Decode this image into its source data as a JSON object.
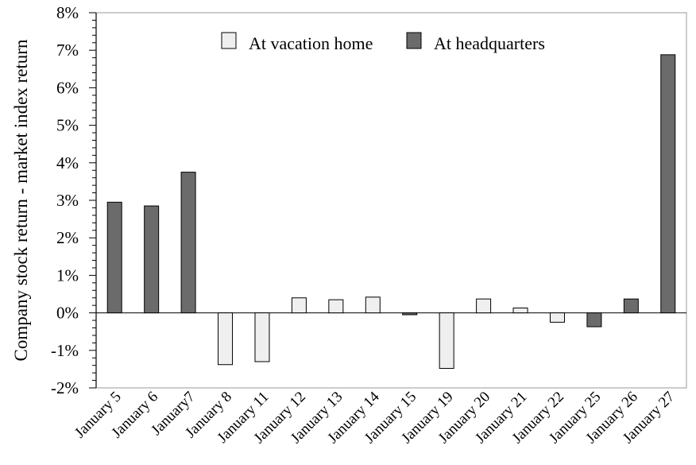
{
  "chart_data": {
    "type": "bar",
    "title": "",
    "xlabel": "",
    "ylabel": "Company stock return - market index return",
    "ylim": [
      -2,
      8
    ],
    "yticks": [
      "8%",
      "7%",
      "6%",
      "5%",
      "4%",
      "3%",
      "2%",
      "1%",
      "0%",
      "-1%",
      "-2%"
    ],
    "ytick_values": [
      8,
      7,
      6,
      5,
      4,
      3,
      2,
      1,
      0,
      -1,
      -2
    ],
    "grid": false,
    "legend_position": "top-center",
    "categories": [
      "January 5",
      "January 6",
      "January7",
      "January 8",
      "January 11",
      "January 12",
      "January 13",
      "January 14",
      "January 15",
      "January 19",
      "January 20",
      "January 21",
      "January 22",
      "January 25",
      "January 26",
      "January 27"
    ],
    "values": [
      2.95,
      2.85,
      3.75,
      -1.38,
      -1.3,
      0.4,
      0.35,
      0.42,
      -0.05,
      -1.48,
      0.37,
      0.13,
      -0.25,
      -0.37,
      0.37,
      6.88
    ],
    "location": [
      "hq",
      "hq",
      "hq",
      "vac",
      "vac",
      "vac",
      "vac",
      "vac",
      "hq",
      "vac",
      "vac",
      "vac",
      "vac",
      "hq",
      "hq",
      "hq"
    ],
    "series": [
      {
        "key": "vac",
        "name": "At vacation home",
        "color": "#efefef"
      },
      {
        "key": "hq",
        "name": "At headquarters",
        "color": "#6b6b6b"
      }
    ]
  }
}
